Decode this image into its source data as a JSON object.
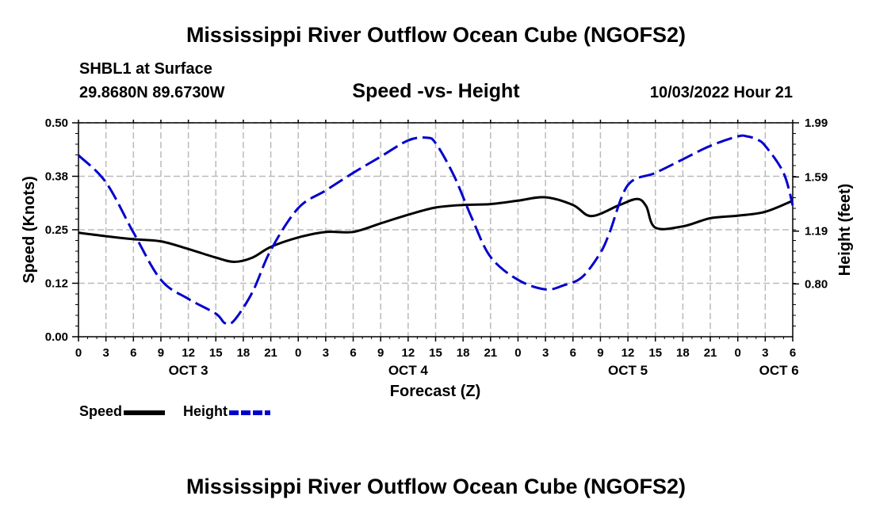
{
  "page_title": "Mississippi River Outflow Ocean Cube (NGOFS2)",
  "bottom_title": "Mississippi River Outflow Ocean Cube (NGOFS2)",
  "station": "SHBL1 at Surface",
  "coords": "29.8680N  89.6730W",
  "datetime": "10/03/2022 Hour 21",
  "colors": {
    "speed": "#000000",
    "height": "#0000cc",
    "grid": "#bbbbbb"
  },
  "chart_data": {
    "type": "line",
    "title": "Speed -vs- Height",
    "xlabel": "Forecast (Z)",
    "ylabel_left": "Speed (Knots)",
    "ylabel_right": "Height (feet)",
    "x_range_hours": [
      0,
      78
    ],
    "x_tick_hours": [
      0,
      3,
      6,
      9,
      12,
      15,
      18,
      21,
      24,
      27,
      30,
      33,
      36,
      39,
      42,
      45,
      48,
      51,
      54,
      57,
      60,
      63,
      66,
      69,
      72,
      75,
      78
    ],
    "x_tick_labels": [
      "0",
      "3",
      "6",
      "9",
      "12",
      "15",
      "18",
      "21",
      "0",
      "3",
      "6",
      "9",
      "12",
      "15",
      "18",
      "21",
      "0",
      "3",
      "6",
      "9",
      "12",
      "15",
      "18",
      "21",
      "0",
      "3",
      "6"
    ],
    "day_labels": [
      {
        "hour": 12,
        "label": "OCT 3"
      },
      {
        "hour": 36,
        "label": "OCT 4"
      },
      {
        "hour": 60,
        "label": "OCT 5"
      },
      {
        "hour": 76.5,
        "label": "OCT 6"
      }
    ],
    "ylim_left": [
      0,
      0.5
    ],
    "y_left_ticks": [
      0.0,
      0.125,
      0.25,
      0.375,
      0.5
    ],
    "y_left_labels": [
      "0.00",
      "0.12",
      "0.25",
      "0.38",
      "0.50"
    ],
    "ylim_right": [
      0.41,
      1.99
    ],
    "y_right_ticks": [
      0.8,
      1.19,
      1.59,
      1.99
    ],
    "y_right_labels": [
      "0.80",
      "1.19",
      "1.59",
      "1.99"
    ],
    "grid": true,
    "series": [
      {
        "name": "Speed",
        "axis": "left",
        "style": "solid",
        "x": [
          0,
          3,
          6,
          9,
          12,
          15,
          17,
          19,
          21,
          24,
          27,
          30,
          33,
          36,
          39,
          42,
          45,
          48,
          51,
          54,
          56,
          59,
          61,
          62,
          63,
          66,
          69,
          72,
          75,
          78
        ],
        "values": [
          0.243,
          0.235,
          0.228,
          0.223,
          0.205,
          0.185,
          0.175,
          0.185,
          0.21,
          0.232,
          0.245,
          0.245,
          0.265,
          0.285,
          0.302,
          0.308,
          0.31,
          0.318,
          0.326,
          0.308,
          0.282,
          0.307,
          0.322,
          0.305,
          0.255,
          0.258,
          0.277,
          0.283,
          0.292,
          0.318
        ]
      },
      {
        "name": "Height",
        "axis": "right",
        "style": "dashed",
        "x": [
          0,
          3,
          6,
          9,
          12,
          15,
          16,
          17,
          19,
          21,
          24,
          27,
          30,
          33,
          36,
          38,
          39,
          41,
          43,
          45,
          48,
          51,
          53,
          55,
          57,
          58,
          60,
          63,
          66,
          69,
          72,
          73,
          74,
          75,
          77,
          78
        ],
        "values": [
          1.75,
          1.55,
          1.18,
          0.83,
          0.69,
          0.58,
          0.51,
          0.53,
          0.74,
          1.05,
          1.36,
          1.49,
          1.62,
          1.74,
          1.86,
          1.88,
          1.84,
          1.6,
          1.28,
          1.0,
          0.83,
          0.76,
          0.79,
          0.85,
          1.03,
          1.18,
          1.53,
          1.62,
          1.72,
          1.82,
          1.89,
          1.89,
          1.87,
          1.82,
          1.62,
          1.38
        ]
      }
    ],
    "legend": [
      {
        "label": "Speed",
        "style": "solid"
      },
      {
        "label": "Height",
        "style": "dashed"
      }
    ]
  }
}
